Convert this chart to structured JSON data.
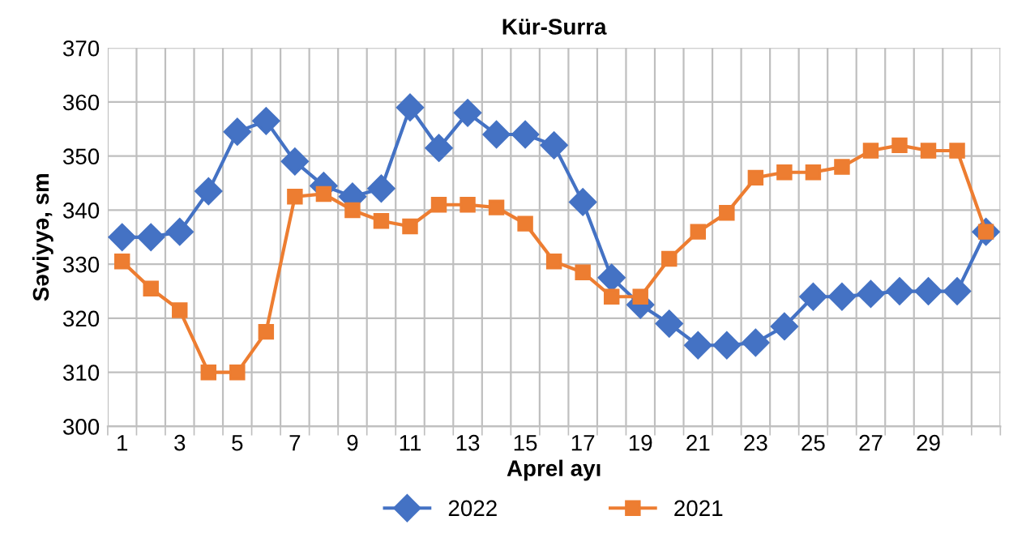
{
  "chart_data": {
    "type": "line",
    "title": "Kür-Surra",
    "xlabel": "Aprel ayı",
    "ylabel": "Səviyyə, sm",
    "categories": [
      "1",
      null,
      "3",
      null,
      "5",
      null,
      "7",
      null,
      "9",
      null,
      "11",
      null,
      "13",
      null,
      "15",
      null,
      "17",
      null,
      "19",
      null,
      "21",
      null,
      "23",
      null,
      "25",
      null,
      "27",
      null,
      "29",
      null,
      null
    ],
    "series": [
      {
        "name": "2022",
        "color": "#4472c4",
        "marker": "diamond",
        "values": [
          335,
          335,
          336,
          343.5,
          354.5,
          356.5,
          349,
          344.5,
          342.5,
          344,
          359,
          351.5,
          358,
          354,
          354,
          352,
          341.5,
          327.5,
          322.5,
          319,
          315,
          315,
          315.5,
          318.5,
          324,
          324,
          324.5,
          325,
          325,
          325,
          336
        ]
      },
      {
        "name": "2021",
        "color": "#ed7d31",
        "marker": "square",
        "values": [
          330.5,
          325.5,
          321.5,
          310,
          310,
          317.5,
          342.5,
          343,
          340,
          338,
          337,
          341,
          341,
          340.5,
          337.5,
          330.5,
          328.5,
          324,
          324,
          331,
          336,
          339.5,
          346,
          347,
          347,
          348,
          351,
          352,
          351,
          351,
          336
        ]
      }
    ],
    "ylim": [
      300,
      370
    ],
    "yticks": [
      300,
      310,
      320,
      330,
      340,
      350,
      360,
      370
    ],
    "grid": true,
    "legend": "bottom",
    "line_style": "solid"
  }
}
